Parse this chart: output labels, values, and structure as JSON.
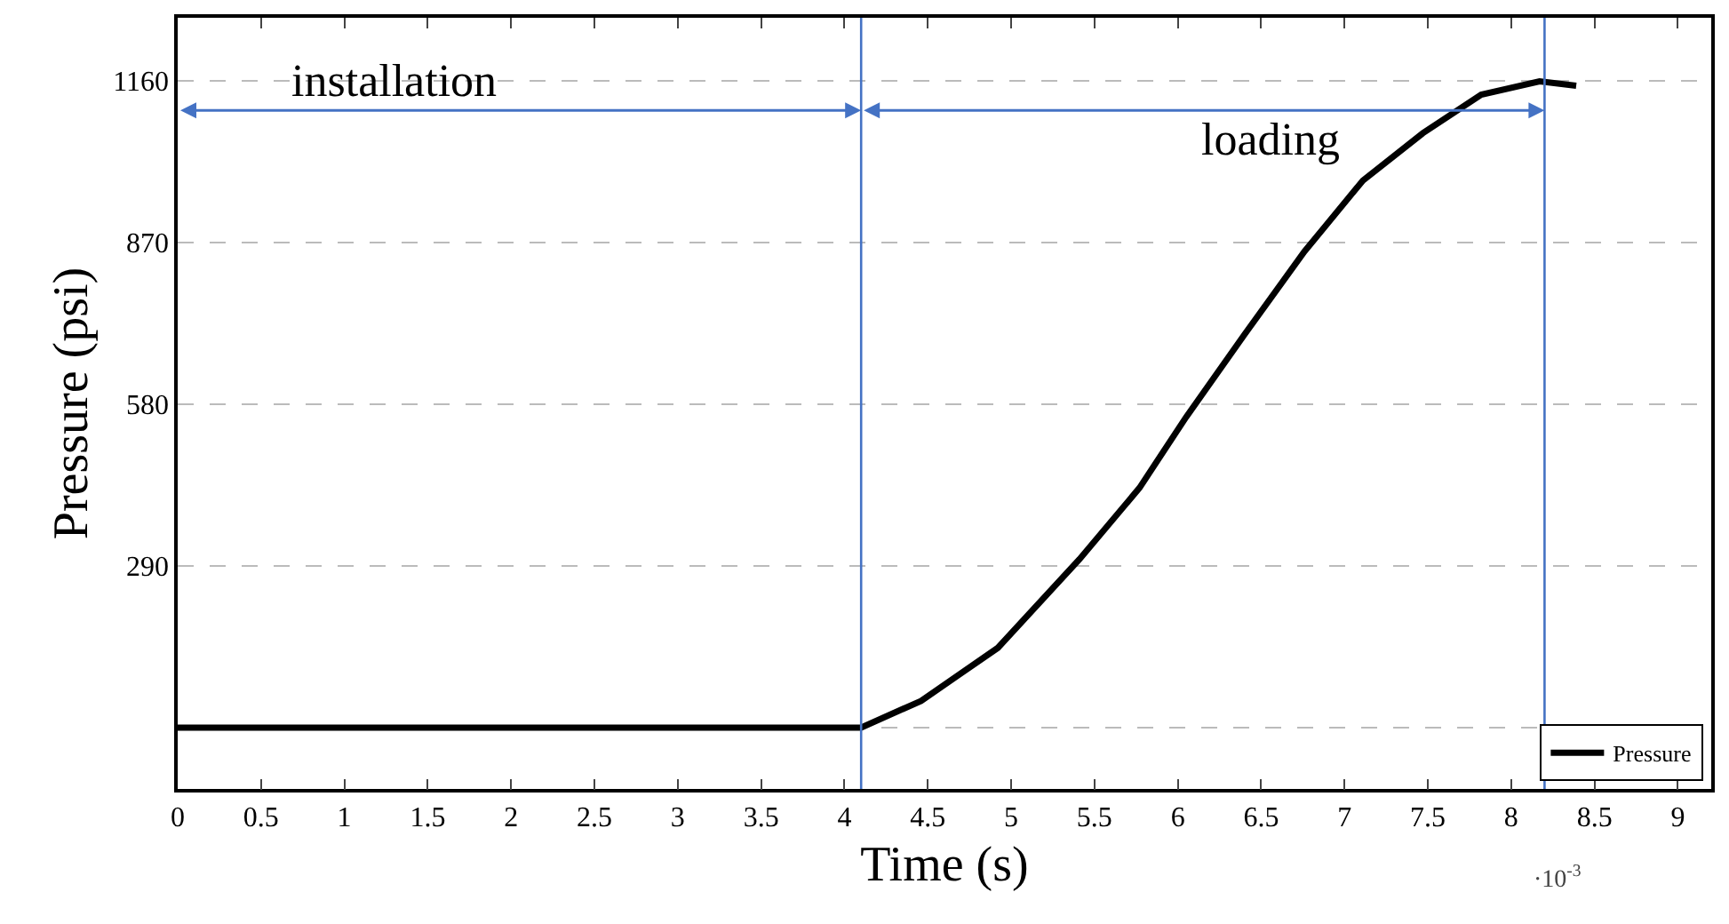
{
  "chart_data": {
    "type": "line",
    "xlabel": "Time (s)",
    "ylabel": "Pressure (psi)",
    "annotations": [
      "·10$^{-3}$",
      "installation",
      "loading"
    ],
    "series": [
      {
        "name": "Pressure",
        "color": "#000000",
        "x": [
          0,
          4.1,
          4.46,
          4.92,
          5.41,
          5.77,
          6.05,
          6.4,
          6.76,
          7.11,
          7.47,
          7.82,
          8.17,
          8.39
        ],
        "values": [
          0,
          0,
          48,
          143,
          302,
          430,
          557,
          705,
          854,
          981,
          1066,
          1135,
          1159,
          1151
        ]
      }
    ],
    "xlim": [
      0,
      9.2
    ],
    "xticks": [
      0,
      0.5,
      1,
      1.5,
      2,
      2.5,
      3,
      3.5,
      4,
      4.5,
      5,
      5.5,
      6,
      6.5,
      7,
      7.5,
      8,
      8.5,
      9
    ],
    "ylim": [
      -110,
      1273
    ],
    "yticks": [
      {
        "value": 0,
        "label": null
      },
      290,
      580,
      870,
      1160
    ],
    "ref_lines": [
      {
        "axis": "x",
        "value": 4.1,
        "color": "#4472c4"
      },
      {
        "axis": "x",
        "value": 8.2,
        "color": "#4472c4"
      }
    ],
    "grid": "y",
    "legend": "bottom right",
    "line_style": "solid",
    "marker": "none"
  }
}
